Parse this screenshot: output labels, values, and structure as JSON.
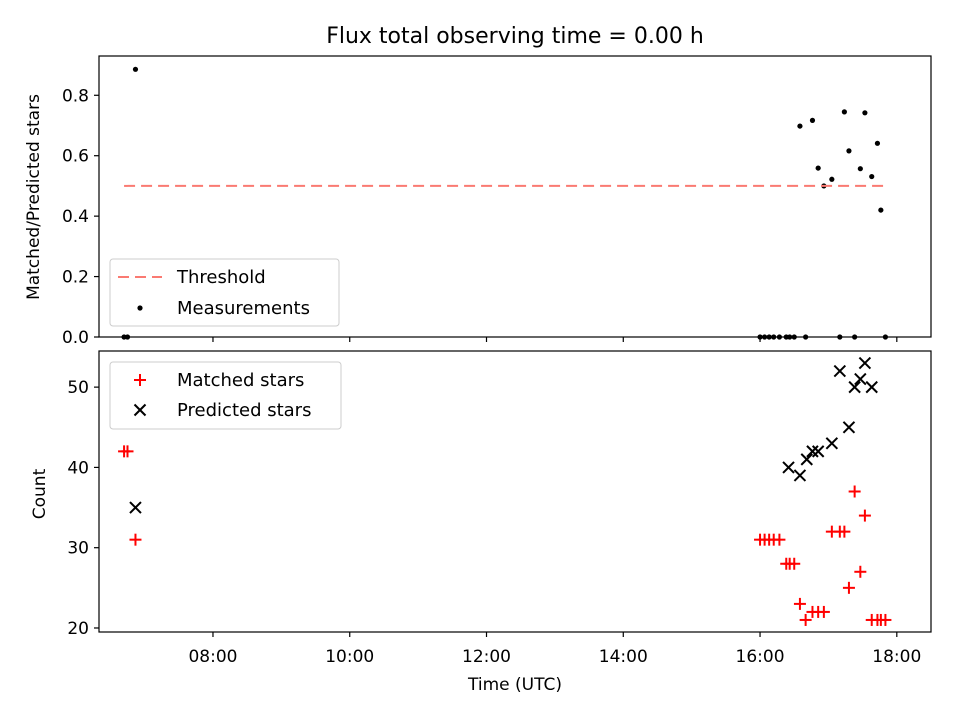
{
  "title": "Flux total observing time = 0.00 h",
  "colors": {
    "threshold": "#fa7a72",
    "measurements": "#000000",
    "matched": "#ff0000",
    "predicted": "#000000"
  },
  "chart_data": [
    {
      "type": "scatter",
      "title": "Flux total observing time = 0.00 h",
      "xlabel": "",
      "ylabel": "Matched/Predicted stars",
      "xlim": [
        "06:20",
        "18:30"
      ],
      "ylim": [
        0,
        0.93
      ],
      "yticks": [
        "0.0",
        "0.2",
        "0.4",
        "0.6",
        "0.8"
      ],
      "legend": {
        "position": "lower-left",
        "entries": [
          "Threshold",
          "Measurements"
        ]
      },
      "threshold": {
        "name": "Threshold",
        "value": 0.5,
        "x_start": "06:42",
        "x_end": "17:53"
      },
      "series": [
        {
          "name": "Measurements",
          "x": [
            "06:42",
            "06:45",
            "06:52",
            "16:00",
            "16:04",
            "16:08",
            "16:12",
            "16:17",
            "16:23",
            "16:26",
            "16:30",
            "16:35",
            "16:40",
            "16:46",
            "16:51",
            "16:56",
            "17:03",
            "17:10",
            "17:14",
            "17:18",
            "17:23",
            "17:28",
            "17:32",
            "17:38",
            "17:43",
            "17:46",
            "17:50"
          ],
          "y": [
            0,
            0,
            0.886,
            0,
            0,
            0,
            0,
            0,
            0,
            0,
            0,
            0.698,
            0,
            0.717,
            0.559,
            0.5,
            0.522,
            0,
            0.745,
            0.616,
            0,
            0.557,
            0.742,
            0.531,
            0.641,
            0.42,
            0
          ]
        }
      ]
    },
    {
      "type": "scatter",
      "xlabel": "Time (UTC)",
      "ylabel": "Count",
      "xlim": [
        "06:20",
        "18:30"
      ],
      "ylim": [
        19.5,
        54.5
      ],
      "yticks": [
        "20",
        "30",
        "40",
        "50"
      ],
      "xticks": [
        "08:00",
        "10:00",
        "12:00",
        "14:00",
        "16:00",
        "18:00"
      ],
      "legend": {
        "position": "upper-left",
        "entries": [
          "Matched stars",
          "Predicted stars"
        ]
      },
      "series": [
        {
          "name": "Matched stars",
          "x": [
            "06:42",
            "06:45",
            "06:52",
            "16:00",
            "16:04",
            "16:08",
            "16:12",
            "16:17",
            "16:23",
            "16:26",
            "16:30",
            "16:35",
            "16:40",
            "16:46",
            "16:51",
            "16:56",
            "17:03",
            "17:10",
            "17:14",
            "17:18",
            "17:23",
            "17:28",
            "17:32",
            "17:38",
            "17:43",
            "17:46",
            "17:50"
          ],
          "y": [
            42,
            42,
            31,
            31,
            31,
            31,
            31,
            31,
            28,
            28,
            28,
            23,
            21,
            22,
            22,
            22,
            32,
            32,
            32,
            25,
            37,
            27,
            34,
            21,
            21,
            21,
            21
          ]
        },
        {
          "name": "Predicted stars",
          "x": [
            "06:52",
            "16:25",
            "16:35",
            "16:41",
            "16:46",
            "16:51",
            "17:03",
            "17:10",
            "17:18",
            "17:23",
            "17:28",
            "17:32",
            "17:38"
          ],
          "y": [
            35,
            40,
            39,
            41,
            42,
            42,
            43,
            52,
            45,
            50,
            51,
            53,
            50
          ]
        }
      ]
    }
  ]
}
